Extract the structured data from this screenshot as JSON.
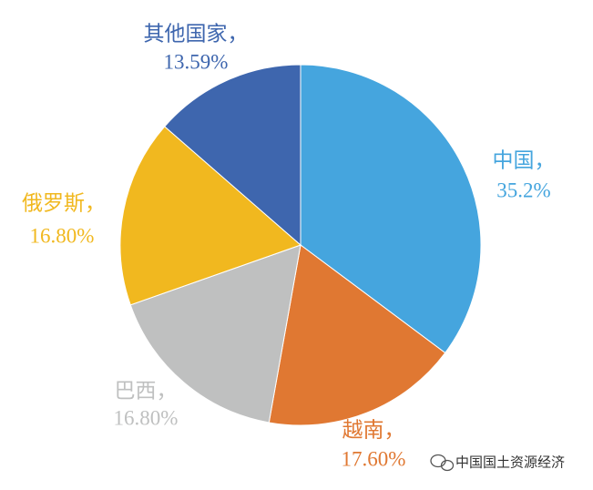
{
  "chart_data": {
    "type": "pie",
    "categories": [
      "中国，",
      "越南，",
      "巴西，",
      "俄罗斯，",
      "其他国家，"
    ],
    "values": [
      35.2,
      17.6,
      16.8,
      16.8,
      13.59
    ],
    "value_labels": [
      "35.2%",
      "17.60%",
      "16.80%",
      "16.80%",
      "13.59%"
    ],
    "colors": [
      "#45a5de",
      "#e07832",
      "#bfc0c0",
      "#f1b81f",
      "#3e66ae"
    ]
  },
  "watermark": "中国国土资源经济"
}
